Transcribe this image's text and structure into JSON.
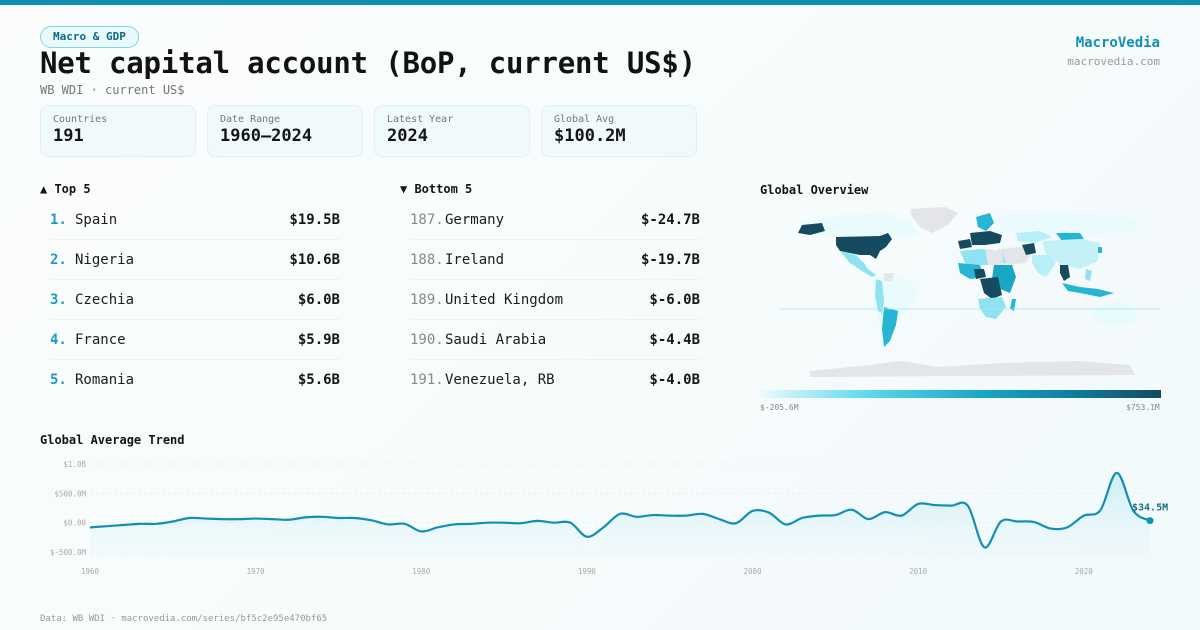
{
  "tag": "Macro & GDP",
  "title": "Net capital account (BoP, current US$)",
  "subtitle": "WB WDI · current US$",
  "brand": {
    "name": "MacroVedia",
    "url": "macrovedia.com"
  },
  "cards": [
    {
      "label": "Countries",
      "value": "191"
    },
    {
      "label": "Date Range",
      "value": "1960–2024"
    },
    {
      "label": "Latest Year",
      "value": "2024"
    },
    {
      "label": "Global Avg",
      "value": "$100.2M"
    }
  ],
  "top": {
    "heading": "▲ Top 5",
    "rows": [
      {
        "rank": "1.",
        "name": "Spain",
        "value": "$19.5B"
      },
      {
        "rank": "2.",
        "name": "Nigeria",
        "value": "$10.6B"
      },
      {
        "rank": "3.",
        "name": "Czechia",
        "value": "$6.0B"
      },
      {
        "rank": "4.",
        "name": "France",
        "value": "$5.9B"
      },
      {
        "rank": "5.",
        "name": "Romania",
        "value": "$5.6B"
      }
    ]
  },
  "bottom": {
    "heading": "▼ Bottom 5",
    "rows": [
      {
        "rank": "187.",
        "name": "Germany",
        "value": "$-24.7B"
      },
      {
        "rank": "188.",
        "name": "Ireland",
        "value": "$-19.7B"
      },
      {
        "rank": "189.",
        "name": "United Kingdom",
        "value": "$-6.0B"
      },
      {
        "rank": "190.",
        "name": "Saudi Arabia",
        "value": "$-4.4B"
      },
      {
        "rank": "191.",
        "name": "Venezuela, RB",
        "value": "$-4.0B"
      }
    ]
  },
  "map": {
    "heading": "Global Overview",
    "legend_min": "$-205.6M",
    "legend_max": "$753.1M",
    "colors": {
      "low": "#eafbfe",
      "mid": "#1aa7c6",
      "high": "#164a5e",
      "nodata": "#e3e5e8"
    }
  },
  "trend": {
    "heading": "Global Average Trend",
    "last_label": "$34.5M"
  },
  "footer": "Data: WB WDI · macrovedia.com/series/bf5c2e95e470bf65",
  "chart_data": {
    "type": "area",
    "title": "Global Average Trend",
    "xlabel": "",
    "ylabel": "",
    "x_ticks": [
      "1960",
      "1970",
      "1980",
      "1990",
      "2000",
      "2010",
      "2020"
    ],
    "y_ticks": [
      "$1.0B",
      "$500.0M",
      "$0.00",
      "$-500.0M"
    ],
    "ylim": [
      -500,
      1000
    ],
    "grid": true,
    "unit": "US$ millions",
    "x": [
      1960,
      1961,
      1962,
      1963,
      1964,
      1965,
      1966,
      1967,
      1968,
      1969,
      1970,
      1971,
      1972,
      1973,
      1974,
      1975,
      1976,
      1977,
      1978,
      1979,
      1980,
      1981,
      1982,
      1983,
      1984,
      1985,
      1986,
      1987,
      1988,
      1989,
      1990,
      1991,
      1992,
      1993,
      1994,
      1995,
      1996,
      1997,
      1998,
      1999,
      2000,
      2001,
      2002,
      2003,
      2004,
      2005,
      2006,
      2007,
      2008,
      2009,
      2010,
      2011,
      2012,
      2013,
      2014,
      2015,
      2016,
      2017,
      2018,
      2019,
      2020,
      2021,
      2022,
      2023,
      2024
    ],
    "values": [
      -80,
      -60,
      -40,
      -20,
      -20,
      20,
      80,
      70,
      60,
      60,
      70,
      60,
      50,
      90,
      100,
      80,
      80,
      40,
      -30,
      -20,
      -150,
      -80,
      -30,
      -20,
      0,
      0,
      -10,
      30,
      0,
      0,
      -240,
      -80,
      150,
      100,
      130,
      120,
      120,
      150,
      60,
      -10,
      200,
      170,
      -30,
      80,
      120,
      130,
      220,
      60,
      180,
      120,
      320,
      300,
      290,
      290,
      -420,
      20,
      20,
      10,
      -100,
      -80,
      120,
      210,
      850,
      200,
      35
    ],
    "last_value_label": "$34.5M"
  }
}
